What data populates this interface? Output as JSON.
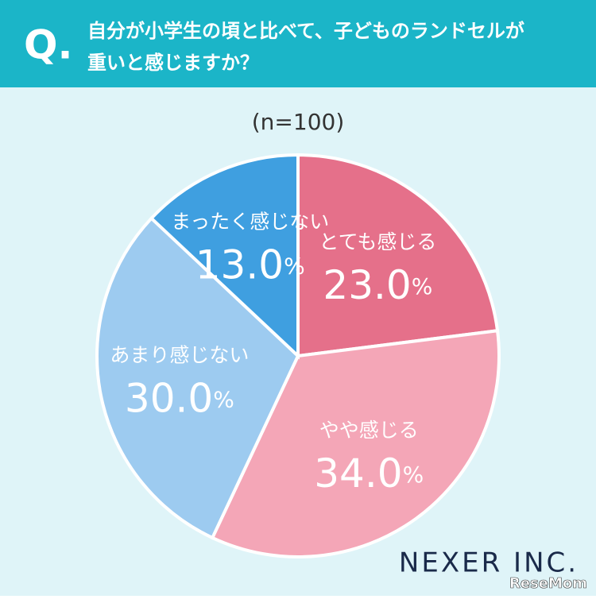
{
  "header": {
    "mark": "Q.",
    "question_lines": [
      "自分が小学生の頃と比べて、子どものランドセルが",
      "重いと感じますか？"
    ]
  },
  "chart_data": {
    "type": "pie",
    "subtitle": "(n=100)",
    "categories": [
      "とても感じる",
      "やや感じる",
      "あまり感じない",
      "まったく感じない"
    ],
    "values": [
      23,
      34,
      30,
      13
    ],
    "value_labels": [
      "23.0%",
      "34.0%",
      "30.0%",
      "13.0%"
    ],
    "colors": [
      "#e5708a",
      "#f4a6b7",
      "#9dcbf0",
      "#3f9fe0"
    ]
  },
  "footer": {
    "logo": "NEXER INC.",
    "watermark": "ReseMom"
  }
}
